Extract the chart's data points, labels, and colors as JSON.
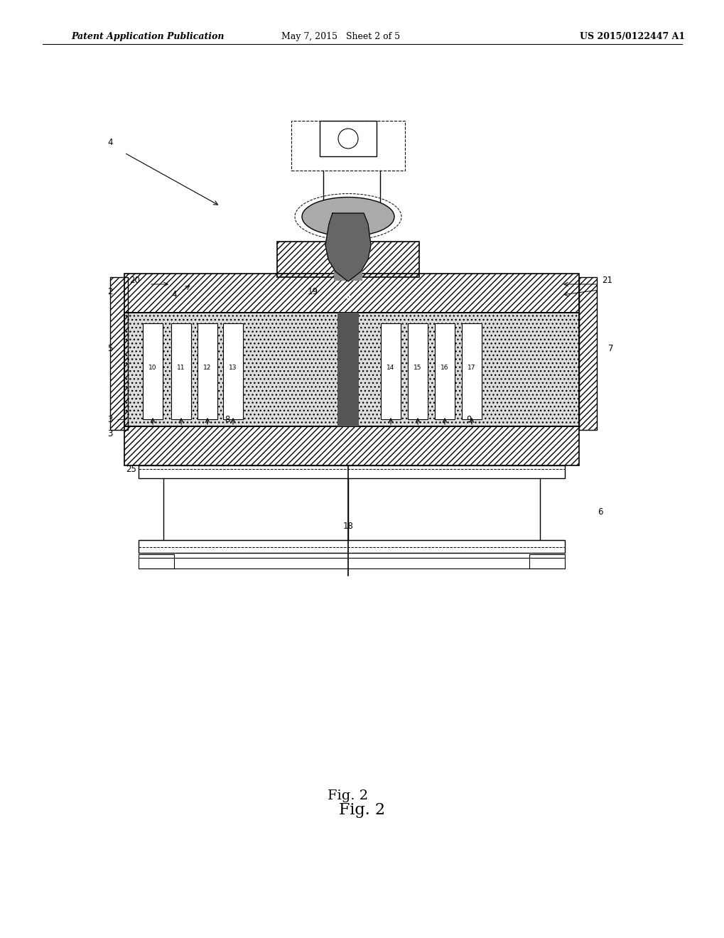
{
  "header_left": "Patent Application Publication",
  "header_mid": "May 7, 2015   Sheet 2 of 5",
  "header_right": "US 2015/0122447 A1",
  "figure_label": "Fig. 2",
  "bg_color": "#ffffff",
  "hatch_color": "#555555",
  "light_gray": "#cccccc",
  "dark_gray": "#888888",
  "medium_gray": "#aaaaaa",
  "text_color": "#000000",
  "line_color": "#000000"
}
